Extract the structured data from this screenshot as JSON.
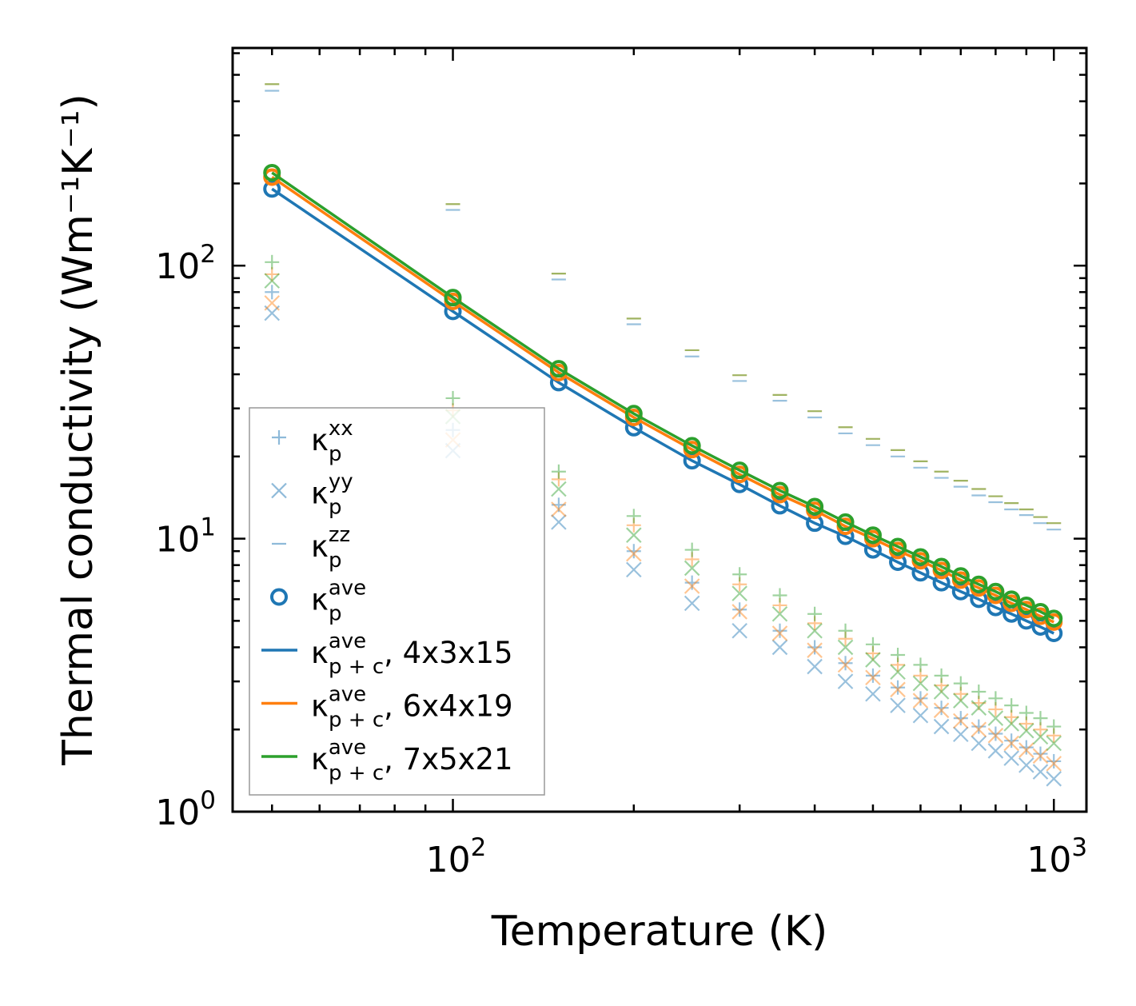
{
  "chart_data": {
    "type": "scatter",
    "xscale": "log",
    "yscale": "log",
    "xlabel": "Temperature (K)",
    "ylabel": "Thermal conductivity (Wm⁻¹K⁻¹)",
    "xlim": [
      43,
      1133
    ],
    "ylim": [
      1,
      627
    ],
    "x_ticks": [
      {
        "value": 100,
        "label": "10",
        "exp": "2"
      },
      {
        "value": 1000,
        "label": "10",
        "exp": "3"
      }
    ],
    "y_ticks": [
      {
        "value": 1,
        "label": "10",
        "exp": "0"
      },
      {
        "value": 10,
        "label": "10",
        "exp": "1"
      },
      {
        "value": 100,
        "label": "10",
        "exp": "2"
      }
    ],
    "grid": false,
    "legend_position": "lower-left",
    "colors": {
      "4x3x15": "#1f77b4",
      "6x4x19": "#ff7f0e",
      "7x5x21": "#2ca02c"
    },
    "x": [
      50,
      100,
      150,
      200,
      250,
      300,
      350,
      400,
      450,
      500,
      550,
      600,
      650,
      700,
      750,
      800,
      850,
      900,
      950,
      1000
    ],
    "series": [
      {
        "name": "4x3x15",
        "color": "#1f77b4",
        "kxx": [
          80,
          25,
          13.3,
          9.0,
          6.9,
          5.5,
          4.6,
          4.0,
          3.5,
          3.15,
          2.85,
          2.6,
          2.4,
          2.2,
          2.05,
          1.93,
          1.82,
          1.72,
          1.63,
          1.53
        ],
        "kyy": [
          67,
          21,
          11.5,
          7.7,
          5.8,
          4.6,
          4.0,
          3.4,
          3.0,
          2.7,
          2.45,
          2.25,
          2.05,
          1.92,
          1.78,
          1.67,
          1.57,
          1.48,
          1.4,
          1.32
        ],
        "kzz": [
          437,
          160,
          89,
          61,
          46.5,
          37.8,
          32,
          27.8,
          24.3,
          22,
          20,
          18.2,
          16.7,
          15.5,
          14.4,
          13.6,
          12.8,
          12.2,
          11.4,
          10.8
        ],
        "kave": [
          191,
          68,
          37.3,
          25.5,
          19.3,
          15.8,
          13.2,
          11.4,
          10.2,
          9.1,
          8.2,
          7.5,
          6.9,
          6.4,
          6.0,
          5.6,
          5.3,
          5.0,
          4.75,
          4.5
        ],
        "kave_pc": [
          191,
          68,
          37.3,
          25.5,
          19.3,
          15.8,
          13.2,
          11.4,
          10.2,
          9.1,
          8.2,
          7.5,
          6.9,
          6.4,
          6.0,
          5.6,
          5.3,
          5.0,
          4.75,
          4.5
        ]
      },
      {
        "name": "6x4x19",
        "color": "#ff7f0e",
        "kxx": [
          93,
          29.5,
          16.5,
          11.2,
          8.4,
          6.8,
          5.7,
          4.9,
          4.3,
          3.8,
          3.45,
          3.15,
          2.9,
          2.7,
          2.5,
          2.37,
          2.22,
          2.1,
          2.0,
          1.9
        ],
        "kyy": [
          73,
          23,
          12.8,
          8.8,
          6.7,
          5.4,
          4.5,
          3.9,
          3.45,
          3.1,
          2.8,
          2.55,
          2.35,
          2.15,
          2.0,
          1.9,
          1.78,
          1.68,
          1.6,
          1.5
        ],
        "kzz": [
          462,
          168,
          93.5,
          64,
          49,
          39.7,
          33.6,
          29.3,
          25.6,
          23.2,
          21.1,
          19.2,
          17.6,
          16.3,
          15.2,
          14.3,
          13.5,
          12.8,
          12.0,
          11.4
        ],
        "kave": [
          211,
          74,
          40.6,
          27.8,
          21.2,
          17.2,
          14.5,
          12.7,
          11.1,
          10.0,
          9.05,
          8.3,
          7.65,
          7.05,
          6.6,
          6.2,
          5.8,
          5.5,
          5.2,
          4.95
        ],
        "kave_pc": [
          211,
          74,
          40.6,
          27.8,
          21.2,
          17.2,
          14.5,
          12.7,
          11.1,
          10.0,
          9.05,
          8.3,
          7.65,
          7.05,
          6.6,
          6.2,
          5.8,
          5.5,
          5.2,
          4.95
        ]
      },
      {
        "name": "7x5x21",
        "color": "#2ca02c",
        "kxx": [
          103,
          32.7,
          17.6,
          12.1,
          9.1,
          7.4,
          6.2,
          5.3,
          4.6,
          4.1,
          3.75,
          3.45,
          3.15,
          2.95,
          2.75,
          2.6,
          2.45,
          2.3,
          2.2,
          2.05
        ],
        "kyy": [
          88,
          28,
          15.2,
          10.3,
          7.8,
          6.3,
          5.3,
          4.6,
          4.0,
          3.6,
          3.25,
          2.95,
          2.75,
          2.55,
          2.4,
          2.2,
          2.1,
          1.98,
          1.88,
          1.78
        ],
        "kzz": [
          462,
          168,
          93.5,
          64,
          49,
          39.7,
          33.6,
          29.3,
          25.6,
          23.2,
          21.1,
          19.2,
          17.6,
          16.3,
          15.2,
          14.3,
          13.5,
          12.8,
          12.0,
          11.4
        ],
        "kave": [
          219,
          76.4,
          41.9,
          28.7,
          21.9,
          17.8,
          15.0,
          13.1,
          11.5,
          10.3,
          9.35,
          8.57,
          7.9,
          7.3,
          6.8,
          6.4,
          6.0,
          5.7,
          5.4,
          5.1
        ],
        "kave_pc": [
          219,
          76.4,
          41.9,
          28.7,
          21.9,
          17.8,
          15.0,
          13.1,
          11.5,
          10.3,
          9.35,
          8.57,
          7.9,
          7.3,
          6.8,
          6.4,
          6.0,
          5.7,
          5.4,
          5.1
        ]
      }
    ],
    "legend": [
      {
        "marker": "plus",
        "base": "κ",
        "sub": "p",
        "sup": "xx",
        "suffix": ""
      },
      {
        "marker": "x",
        "base": "κ",
        "sub": "p",
        "sup": "yy",
        "suffix": ""
      },
      {
        "marker": "dash",
        "base": "κ",
        "sub": "p",
        "sup": "zz",
        "suffix": ""
      },
      {
        "marker": "circle",
        "base": "κ",
        "sub": "p",
        "sup": "ave",
        "suffix": ""
      },
      {
        "marker": "line",
        "color": "#1f77b4",
        "base": "κ",
        "sub": "p + c",
        "sup": "ave",
        "suffix": ", 4x3x15"
      },
      {
        "marker": "line",
        "color": "#ff7f0e",
        "base": "κ",
        "sub": "p + c",
        "sup": "ave",
        "suffix": ", 6x4x19"
      },
      {
        "marker": "line",
        "color": "#2ca02c",
        "base": "κ",
        "sub": "p + c",
        "sup": "ave",
        "suffix": ", 7x5x21"
      }
    ]
  }
}
